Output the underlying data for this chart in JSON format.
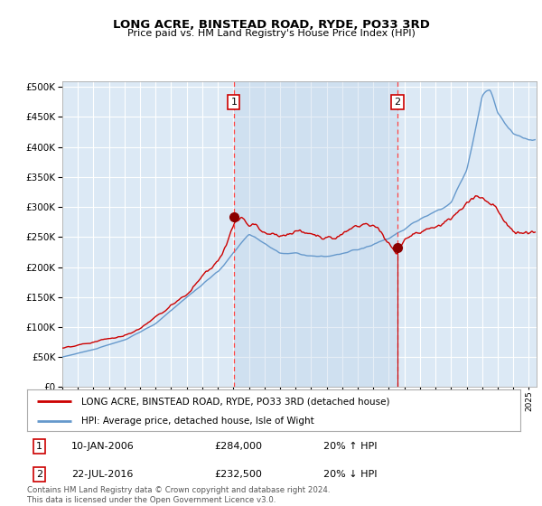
{
  "title": "LONG ACRE, BINSTEAD ROAD, RYDE, PO33 3RD",
  "subtitle": "Price paid vs. HM Land Registry's House Price Index (HPI)",
  "ylim": [
    0,
    510000
  ],
  "yticks": [
    0,
    50000,
    100000,
    150000,
    200000,
    250000,
    300000,
    350000,
    400000,
    450000,
    500000
  ],
  "xlim_start": 1995.0,
  "xlim_end": 2025.5,
  "fig_bg_color": "#ffffff",
  "plot_bg_color": "#dce9f5",
  "grid_color": "#ffffff",
  "sale1_date": 2006.03,
  "sale1_price": 284000,
  "sale2_date": 2016.56,
  "sale2_price": 232500,
  "legend_line1": "LONG ACRE, BINSTEAD ROAD, RYDE, PO33 3RD (detached house)",
  "legend_line2": "HPI: Average price, detached house, Isle of Wight",
  "footer": "Contains HM Land Registry data © Crown copyright and database right 2024.\nThis data is licensed under the Open Government Licence v3.0.",
  "red_line_color": "#cc0000",
  "blue_line_color": "#6699cc",
  "dashed_line_color": "#ff4444",
  "shade_color": "#b8d0e8"
}
